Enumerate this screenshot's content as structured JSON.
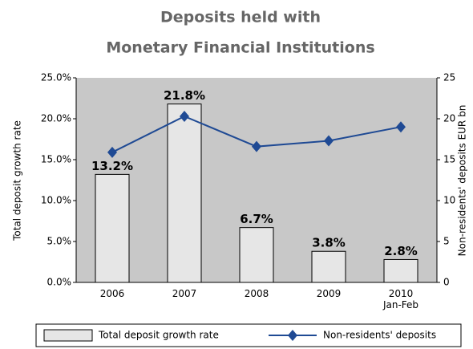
{
  "chart_data": {
    "type": "bar_line",
    "title": [
      "Deposits held with",
      "Monetary Financial Institutions"
    ],
    "y_label": "Total deposit growth rate",
    "y2_label": "Non-residents' deposits EUR bn",
    "categories": [
      "2006",
      "2007",
      "2008",
      "2009",
      "2010\nJan-Feb"
    ],
    "series": [
      {
        "name": "Total deposit growth rate",
        "type": "bar",
        "color": "#e6e6e6",
        "values": [
          13.2,
          21.8,
          6.7,
          3.8,
          2.8
        ],
        "value_labels": [
          "13.2%",
          "21.8%",
          "6.7%",
          "3.8%",
          "2.8%"
        ]
      },
      {
        "name": "Non-residents' deposits",
        "type": "line",
        "axis": "y2",
        "color": "#1f4a94",
        "values": [
          15.9,
          20.3,
          16.6,
          17.3,
          19.0
        ]
      }
    ],
    "ylim": [
      0,
      25
    ],
    "yticks": [
      {
        "value": 0,
        "label": "0.0%"
      },
      {
        "value": 5,
        "label": "5.0%"
      },
      {
        "value": 10,
        "label": "10.0%"
      },
      {
        "value": 15,
        "label": "15.0%"
      },
      {
        "value": 20,
        "label": "20.0%"
      },
      {
        "value": 25,
        "label": "25.0%"
      }
    ],
    "y2lim": [
      0,
      25
    ],
    "y2ticks": [
      0,
      5,
      10,
      15,
      20,
      25
    ],
    "legend": "bottom"
  }
}
